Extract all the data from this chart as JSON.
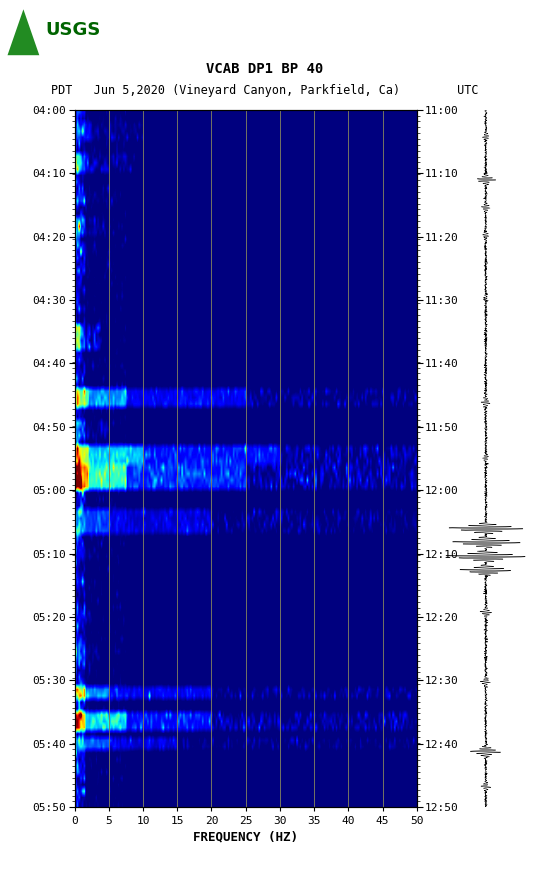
{
  "title_line1": "VCAB DP1 BP 40",
  "title_line2": "PDT   Jun 5,2020 (Vineyard Canyon, Parkfield, Ca)        UTC",
  "xlabel": "FREQUENCY (HZ)",
  "freq_min": 0,
  "freq_max": 50,
  "ytick_pdt": [
    "04:00",
    "04:10",
    "04:20",
    "04:30",
    "04:40",
    "04:50",
    "05:00",
    "05:10",
    "05:20",
    "05:30",
    "05:40",
    "05:50"
  ],
  "ytick_utc": [
    "11:00",
    "11:10",
    "11:20",
    "11:30",
    "11:40",
    "11:50",
    "12:00",
    "12:10",
    "12:20",
    "12:30",
    "12:40",
    "12:50"
  ],
  "xticks": [
    0,
    5,
    10,
    15,
    20,
    25,
    30,
    35,
    40,
    45,
    50
  ],
  "fig_bg": "#ffffff",
  "colormap": "jet",
  "vertical_lines_freq": [
    5,
    10,
    15,
    20,
    25,
    30,
    35,
    40,
    45
  ],
  "vertical_line_color": "#808060",
  "n_time_bins": 110,
  "n_freq_bins": 200,
  "seis_event_times": [
    0.04,
    0.1,
    0.14,
    0.18,
    0.27,
    0.42,
    0.5,
    0.6,
    0.62,
    0.64,
    0.66,
    0.72,
    0.82,
    0.92,
    0.97
  ],
  "seis_event_amps": [
    0.08,
    0.25,
    0.12,
    0.08,
    0.06,
    0.12,
    0.06,
    1.0,
    0.9,
    1.1,
    0.7,
    0.15,
    0.12,
    0.4,
    0.1
  ]
}
